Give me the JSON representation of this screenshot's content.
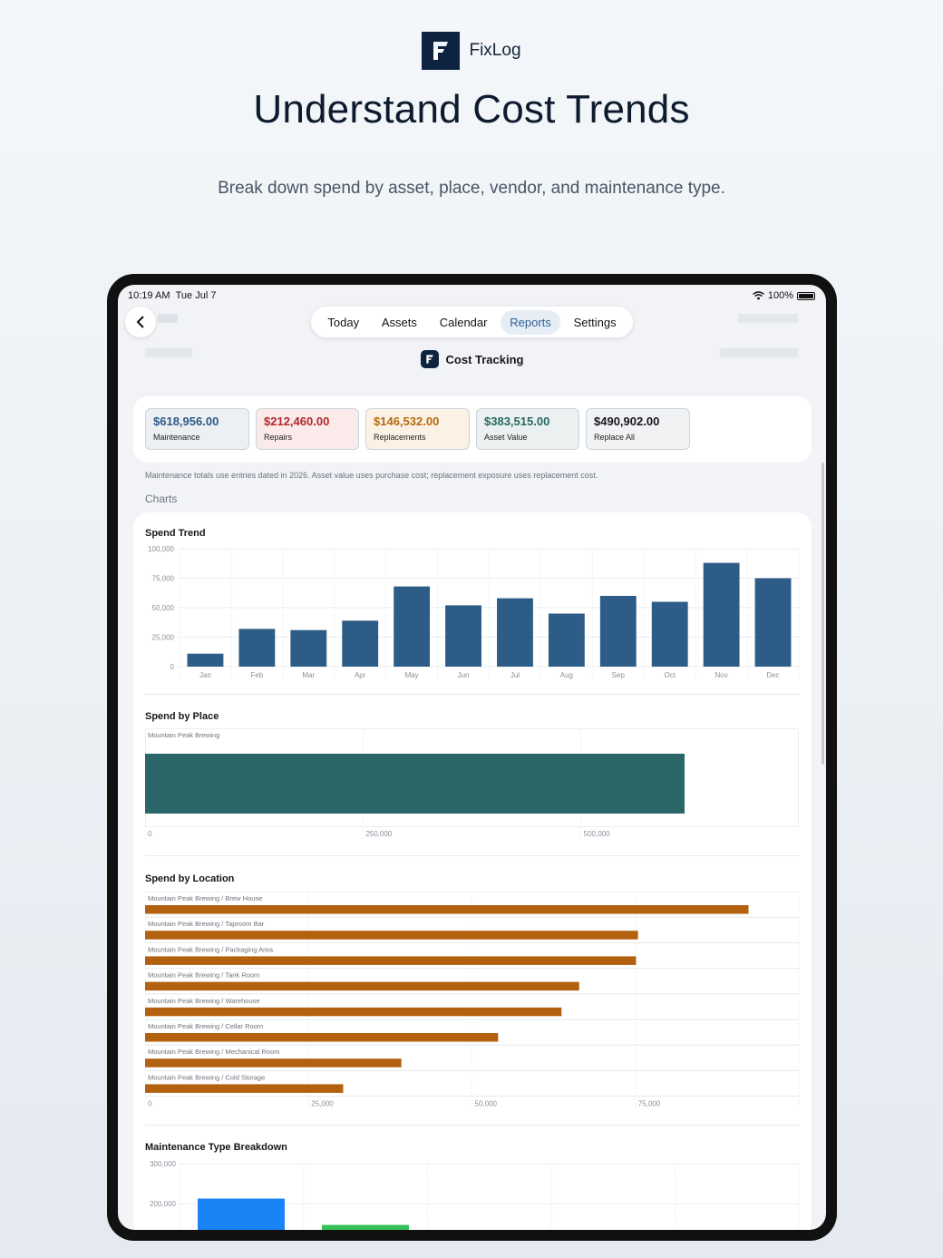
{
  "brand": {
    "name": "FixLog"
  },
  "headline": "Understand Cost Trends",
  "subhead": "Break down spend by asset, place, vendor, and maintenance type.",
  "status": {
    "time": "10:19 AM",
    "date": "Tue Jul 7",
    "battery": "100%"
  },
  "nav": {
    "items": [
      "Today",
      "Assets",
      "Calendar",
      "Reports",
      "Settings"
    ],
    "active": "Reports"
  },
  "page_title": "Cost Tracking",
  "metrics": [
    {
      "value": "$618,956.00",
      "label": "Maintenance",
      "color": "#2c5a86",
      "bg": "#edf0f3"
    },
    {
      "value": "$212,460.00",
      "label": "Repairs",
      "color": "#b3262a",
      "bg": "#faeaea"
    },
    {
      "value": "$146,532.00",
      "label": "Replacements",
      "color": "#b66a10",
      "bg": "#fbf1e4"
    },
    {
      "value": "$383,515.00",
      "label": "Asset Value",
      "color": "#286763",
      "bg": "#eaf1f0"
    },
    {
      "value": "$490,902.00",
      "label": "Replace All",
      "color": "#15171a",
      "bg": "#f1f2f4"
    }
  ],
  "note": "Maintenance totals use entries dated in 2026. Asset value uses purchase cost; replacement exposure uses replacement cost.",
  "section_label": "Charts",
  "chart_data": [
    {
      "type": "bar",
      "title": "Spend Trend",
      "categories": [
        "Jan",
        "Feb",
        "Mar",
        "Apr",
        "May",
        "Jun",
        "Jul",
        "Aug",
        "Sep",
        "Oct",
        "Nov",
        "Dec"
      ],
      "values": [
        11000,
        32000,
        31000,
        39000,
        68000,
        52000,
        58000,
        45000,
        60000,
        55000,
        88000,
        75000
      ],
      "ylim": [
        0,
        100000
      ],
      "yticks": [
        "0",
        "25,000",
        "50,000",
        "75,000",
        "100,000"
      ],
      "color": "#2d5d86"
    },
    {
      "type": "bar",
      "orientation": "horizontal",
      "title": "Spend by Place",
      "categories": [
        "Mountain Peak Brewing"
      ],
      "values": [
        618956
      ],
      "xlim": [
        0,
        750000
      ],
      "xticks": [
        "0",
        "250,000",
        "500,000"
      ],
      "color": "#2b6669"
    },
    {
      "type": "bar",
      "orientation": "horizontal",
      "title": "Spend by Location",
      "categories": [
        "Mountain Peak Brewing / Brew House",
        "Mountain Peak Brewing / Taproom Bar",
        "Mountain Peak Brewing / Packaging Area",
        "Mountain Peak Brewing / Tank Room",
        "Mountain Peak Brewing / Warehouse",
        "Mountain Peak Brewing / Cellar Room",
        "Mountain Peak Brewing / Mechanical Room",
        "Mountain Peak Brewing / Cold Storage"
      ],
      "values": [
        92300,
        75400,
        75100,
        66400,
        63700,
        54000,
        39200,
        30300
      ],
      "xlim": [
        0,
        100000
      ],
      "xticks": [
        "0",
        "25,000",
        "50,000",
        "75,000"
      ],
      "color": "#b3600f"
    },
    {
      "type": "bar",
      "title": "Maintenance Type Breakdown",
      "categories": [
        "",
        ""
      ],
      "values": [
        212460,
        146532
      ],
      "ylim": [
        0,
        300000
      ],
      "yticks": [
        "200,000",
        "300,000"
      ],
      "colors": [
        "#1a83f5",
        "#34c158"
      ]
    }
  ]
}
